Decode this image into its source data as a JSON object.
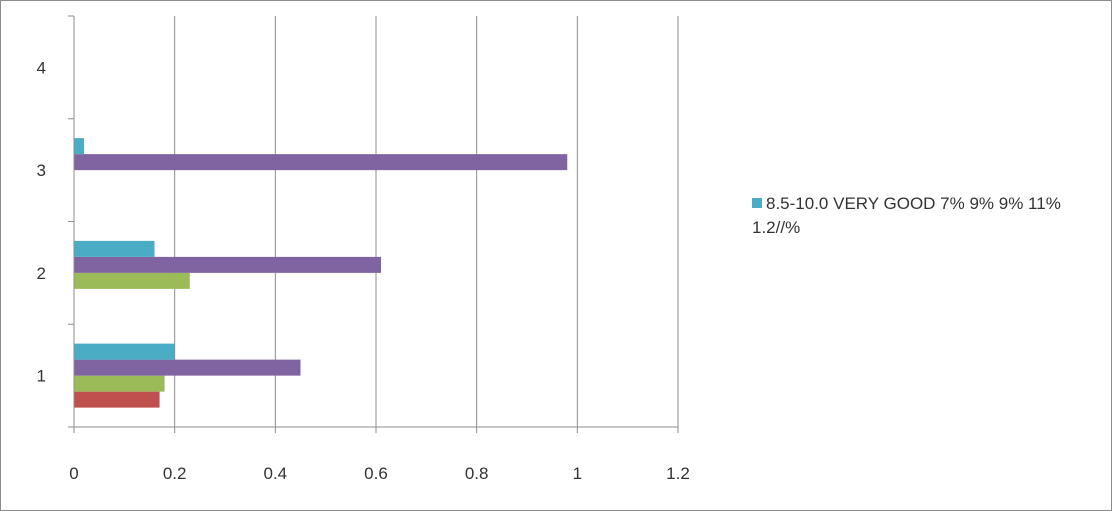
{
  "chart_data": {
    "type": "bar",
    "orientation": "horizontal",
    "categories": [
      "1",
      "2",
      "3",
      "4"
    ],
    "series": [
      {
        "name": "",
        "color": "#c0504d",
        "values": [
          0.17,
          null,
          null,
          null
        ]
      },
      {
        "name": "",
        "color": "#9bbb59",
        "values": [
          0.18,
          0.23,
          null,
          null
        ]
      },
      {
        "name": "",
        "color": "#8064a2",
        "values": [
          0.45,
          0.61,
          0.98,
          null
        ]
      },
      {
        "name": "8.5-10.0 VERY GOOD 7% 9% 9% 11% 1.2//%",
        "color": "#4bacc6",
        "values": [
          0.2,
          0.16,
          0.02,
          null
        ]
      }
    ],
    "xlim": [
      0,
      1.2
    ],
    "xticks": [
      "0",
      "0.2",
      "0.4",
      "0.6",
      "0.8",
      "1",
      "1.2"
    ],
    "grid": "vertical",
    "legend_position": "right"
  },
  "legend": {
    "text": "8.5-10.0 VERY GOOD 7% 9% 9% 11% 1.2//%",
    "color": "#4bacc6"
  }
}
